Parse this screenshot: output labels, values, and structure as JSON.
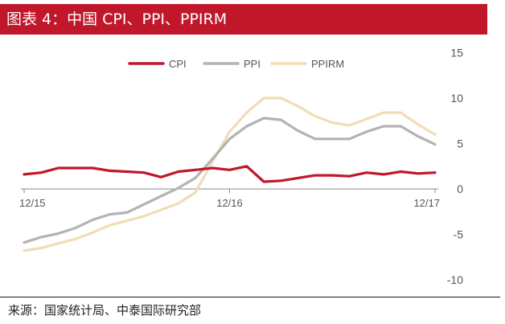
{
  "header": {
    "title": "图表 4：中国 CPI、PPI、PPIRM"
  },
  "footer": {
    "source": "来源：国家统计局、中泰国际研究部"
  },
  "chart_data": {
    "type": "line",
    "x": [
      "2015-12",
      "2016-01",
      "2016-02",
      "2016-03",
      "2016-04",
      "2016-05",
      "2016-06",
      "2016-07",
      "2016-08",
      "2016-09",
      "2016-10",
      "2016-11",
      "2016-12",
      "2017-01",
      "2017-02",
      "2017-03",
      "2017-04",
      "2017-05",
      "2017-06",
      "2017-07",
      "2017-08",
      "2017-09",
      "2017-10",
      "2017-11",
      "2017-12"
    ],
    "x_tick_labels": [
      "12/15",
      "12/16",
      "12/17"
    ],
    "y_ticks": [
      15,
      10,
      5,
      0,
      -5,
      -10
    ],
    "ylim": [
      -10,
      15
    ],
    "series": [
      {
        "name": "CPI",
        "color": "#c0172b",
        "values": [
          1.6,
          1.8,
          2.3,
          2.3,
          2.3,
          2.0,
          1.9,
          1.8,
          1.3,
          1.9,
          2.1,
          2.3,
          2.1,
          2.5,
          0.8,
          0.9,
          1.2,
          1.5,
          1.5,
          1.4,
          1.8,
          1.6,
          1.9,
          1.7,
          1.8
        ]
      },
      {
        "name": "PPI",
        "color": "#b3b3b3",
        "values": [
          -5.9,
          -5.3,
          -4.9,
          -4.3,
          -3.4,
          -2.8,
          -2.6,
          -1.7,
          -0.8,
          0.1,
          1.2,
          3.3,
          5.5,
          6.9,
          7.8,
          7.6,
          6.4,
          5.5,
          5.5,
          5.5,
          6.3,
          6.9,
          6.9,
          5.8,
          4.9
        ]
      },
      {
        "name": "PPIRM",
        "color": "#f0ddb5",
        "values": [
          -6.8,
          -6.5,
          -6.0,
          -5.5,
          -4.8,
          -4.0,
          -3.5,
          -3.0,
          -2.3,
          -1.6,
          -0.4,
          3.0,
          6.3,
          8.4,
          10.0,
          10.0,
          9.1,
          8.0,
          7.3,
          7.0,
          7.7,
          8.4,
          8.4,
          7.1,
          6.0
        ]
      }
    ],
    "legend": "top-center",
    "grid": false,
    "y_axis_position": "right"
  }
}
